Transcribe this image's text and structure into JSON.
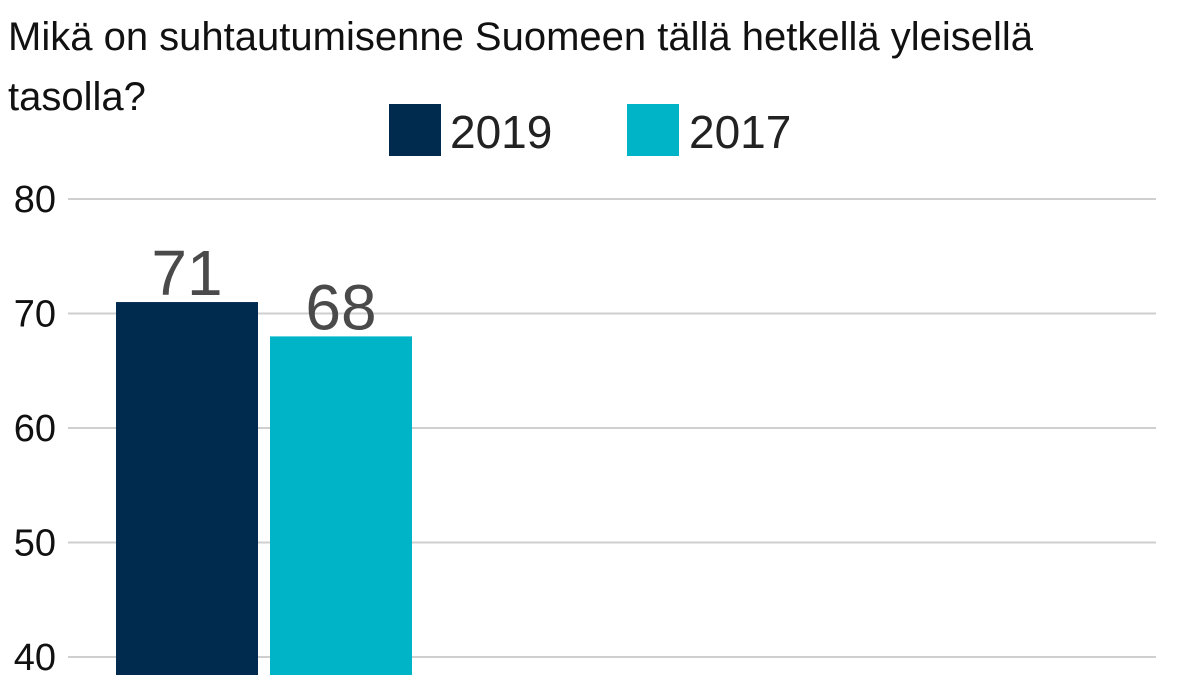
{
  "chart_data": {
    "type": "bar",
    "title_lines": [
      "Mikä on suhtautumisenne Suomeen tällä hetkellä yleisellä",
      "tasolla?"
    ],
    "categories": [
      ""
    ],
    "series": [
      {
        "name": "2019",
        "values": [
          71
        ],
        "color": "#002a4e"
      },
      {
        "name": "2017",
        "values": [
          68
        ],
        "color": "#00b4c8"
      }
    ],
    "yticks": [
      80,
      70,
      60,
      50,
      40
    ],
    "ylim": [
      40,
      80
    ],
    "grid": true,
    "legend": "top-center",
    "xlabel": "",
    "ylabel": ""
  }
}
